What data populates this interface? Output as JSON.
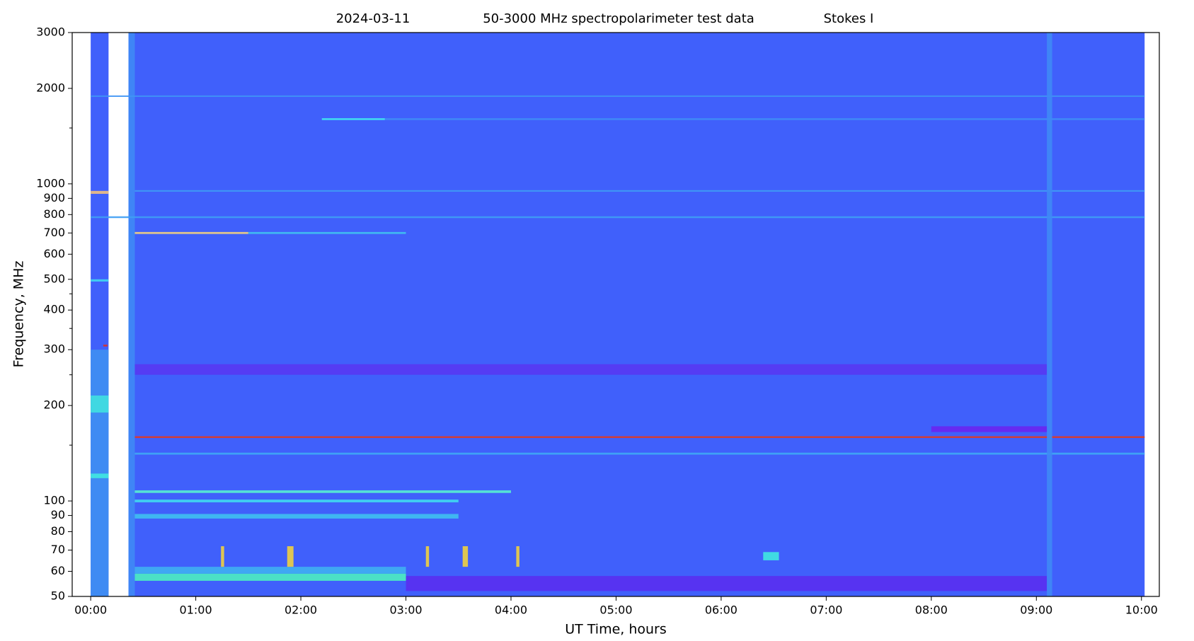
{
  "chart_data": {
    "type": "spectrogram",
    "date": "2024-03-11",
    "title": "50-3000 MHz spectropolarimeter test data",
    "subtitle": "Stokes I",
    "x_label": "UT Time, hours",
    "y_label": "Frequency, MHz",
    "log_y": true,
    "color": "#4060fb",
    "xlim": [
      -0.176,
      10.17
    ],
    "xticks": [
      {
        "value": 0,
        "label": "00:00"
      },
      {
        "value": 1,
        "label": "01:00"
      },
      {
        "value": 2,
        "label": "02:00"
      },
      {
        "value": 3,
        "label": "03:00"
      },
      {
        "value": 4,
        "label": "04:00"
      },
      {
        "value": 5,
        "label": "05:00"
      },
      {
        "value": 6,
        "label": "06:00"
      },
      {
        "value": 7,
        "label": "07:00"
      },
      {
        "value": 8,
        "label": "08:00"
      },
      {
        "value": 9,
        "label": "09:00"
      },
      {
        "value": 10,
        "label": "10:00"
      }
    ],
    "ylim": [
      50,
      3000
    ],
    "yticks": [
      50,
      60,
      70,
      80,
      90,
      100,
      200,
      300,
      400,
      500,
      600,
      700,
      800,
      900,
      1000,
      2000,
      3000
    ],
    "yminorticks": [
      150,
      250,
      350,
      450,
      1500
    ],
    "segments": [
      {
        "start": 0,
        "end": 0.17
      },
      {
        "start": 0.36,
        "end": 10.03
      }
    ],
    "bands": [
      {
        "freq_low": 50,
        "freq_high": 3000,
        "start": 0.36,
        "end": 0.42,
        "color": "#3f8af5"
      },
      {
        "freq_low": 50,
        "freq_high": 300,
        "start": 0,
        "end": 0.17,
        "color": "#3f90f2"
      },
      {
        "freq_low": 52,
        "freq_high": 58,
        "start": 3.0,
        "end": 9.1,
        "color": "#5a2ff0"
      },
      {
        "freq_low": 56,
        "freq_high": 59,
        "start": 0.42,
        "end": 3.0,
        "color": "#4cf0c0"
      },
      {
        "freq_low": 59,
        "freq_high": 62,
        "start": 0.42,
        "end": 3.0,
        "color": "#3fb0f2"
      },
      {
        "freq_low": 88,
        "freq_high": 91,
        "start": 0.42,
        "end": 3.5,
        "color": "#3fc0f0"
      },
      {
        "freq_low": 99,
        "freq_high": 101,
        "start": 0.42,
        "end": 3.5,
        "color": "#40d8f0"
      },
      {
        "freq_low": 106,
        "freq_high": 108,
        "start": 0.42,
        "end": 4.0,
        "color": "#58f0d0"
      },
      {
        "freq_low": 118,
        "freq_high": 122,
        "start": 0,
        "end": 0.17,
        "color": "#40e8e0"
      },
      {
        "freq_low": 140,
        "freq_high": 142,
        "start": 0.42,
        "end": 10.03,
        "color": "#3fa8f4"
      },
      {
        "freq_low": 158,
        "freq_high": 160,
        "start": 0.42,
        "end": 10.03,
        "color": "#e23a20"
      },
      {
        "freq_low": 165,
        "freq_high": 172,
        "start": 8.0,
        "end": 9.1,
        "color": "#6a25f0"
      },
      {
        "freq_low": 190,
        "freq_high": 215,
        "start": 0,
        "end": 0.17,
        "color": "#40e0e0"
      },
      {
        "freq_low": 250,
        "freq_high": 270,
        "start": 0.42,
        "end": 9.1,
        "color": "#5838f2"
      },
      {
        "freq_low": 307,
        "freq_high": 311,
        "start": 0.12,
        "end": 0.16,
        "color": "#e03020"
      },
      {
        "freq_low": 492,
        "freq_high": 500,
        "start": 0,
        "end": 0.17,
        "color": "#40d8f0"
      },
      {
        "freq_low": 695,
        "freq_high": 705,
        "start": 0.42,
        "end": 1.5,
        "color": "#f0d080"
      },
      {
        "freq_low": 695,
        "freq_high": 705,
        "start": 1.5,
        "end": 3.0,
        "color": "#40c0f0"
      },
      {
        "freq_low": 780,
        "freq_high": 790,
        "start": 0,
        "end": 10.03,
        "color": "#3f9ef4"
      },
      {
        "freq_low": 930,
        "freq_high": 950,
        "start": 0,
        "end": 0.17,
        "color": "#f0c080"
      },
      {
        "freq_low": 945,
        "freq_high": 955,
        "start": 0.42,
        "end": 10.03,
        "color": "#3fa0f4"
      },
      {
        "freq_low": 1590,
        "freq_high": 1610,
        "start": 2.2,
        "end": 2.8,
        "color": "#40f0f0"
      },
      {
        "freq_low": 1590,
        "freq_high": 1610,
        "start": 2.8,
        "end": 10.03,
        "color": "#3f90f5"
      },
      {
        "freq_low": 1880,
        "freq_high": 1900,
        "start": 0,
        "end": 10.03,
        "color": "#3f95f5"
      },
      {
        "freq_low": 62,
        "freq_high": 72,
        "start": 1.24,
        "end": 1.27,
        "color": "#f0d040"
      },
      {
        "freq_low": 62,
        "freq_high": 72,
        "start": 1.87,
        "end": 1.93,
        "color": "#f0d040"
      },
      {
        "freq_low": 62,
        "freq_high": 72,
        "start": 3.19,
        "end": 3.22,
        "color": "#f0d040"
      },
      {
        "freq_low": 62,
        "freq_high": 72,
        "start": 3.54,
        "end": 3.59,
        "color": "#f0d040"
      },
      {
        "freq_low": 62,
        "freq_high": 72,
        "start": 4.05,
        "end": 4.08,
        "color": "#f0d040"
      },
      {
        "freq_low": 65,
        "freq_high": 69,
        "start": 6.4,
        "end": 6.55,
        "color": "#40e8e0"
      },
      {
        "freq_low": 50,
        "freq_high": 3000,
        "start": 9.1,
        "end": 9.15,
        "color": "#3f8af5"
      }
    ]
  }
}
